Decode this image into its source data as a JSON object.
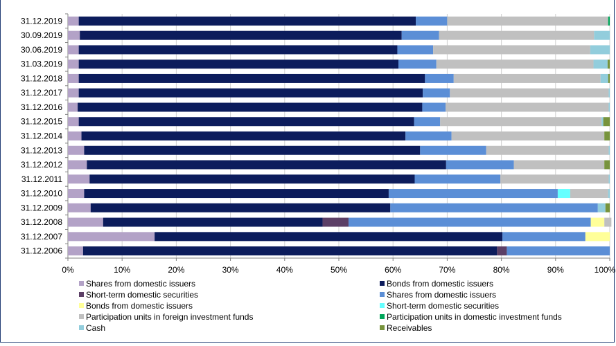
{
  "chart_data": {
    "type": "bar",
    "orientation": "horizontal",
    "stacked": true,
    "percent_stacked": true,
    "grid": true,
    "legend_position": "bottom",
    "x_range": [
      0,
      100
    ],
    "x_ticks": [
      "0%",
      "10%",
      "20%",
      "30%",
      "40%",
      "50%",
      "60%",
      "70%",
      "80%",
      "90%",
      "100%"
    ],
    "categories": [
      "31.12.2019",
      "30.09.2019",
      "30.06.2019",
      "31.03.2019",
      "31.12.2018",
      "31.12.2017",
      "31.12.2016",
      "31.12.2015",
      "31.12.2014",
      "31.12.2013",
      "31.12.2012",
      "31.12.2011",
      "31.12.2010",
      "31.12.2009",
      "31.12.2008",
      "31.12.2007",
      "31.12.2006"
    ],
    "series": [
      {
        "name": "Shares from domestic issuers",
        "color": "#b3a2c7",
        "values": [
          2,
          2.2,
          2,
          2,
          2,
          2,
          1.8,
          2,
          2.5,
          3,
          3.5,
          4,
          3,
          4.2,
          6.5,
          16,
          2.8
        ]
      },
      {
        "name": "Bonds from domestic issuers",
        "color": "#0c1c5c",
        "values": [
          62.2,
          59.4,
          58.8,
          59,
          63.9,
          63.5,
          63.6,
          61.9,
          59.8,
          62,
          66.3,
          60,
          56.2,
          55.3,
          40.5,
          64.2,
          76.4
        ]
      },
      {
        "name": "Short-term domestic securities",
        "color": "#5c3f66",
        "values": [
          0,
          0,
          0,
          0,
          0,
          0,
          0,
          0,
          0,
          0,
          0,
          0,
          0,
          0,
          4.8,
          0,
          1.8
        ]
      },
      {
        "name": "Shares from domestic issuers",
        "color": "#5b8ed6",
        "values": [
          5.8,
          6.9,
          6.6,
          7,
          5.3,
          5,
          4.3,
          4.8,
          8.5,
          12.2,
          12.5,
          15.8,
          31.2,
          38.3,
          44.7,
          15.3,
          19
        ]
      },
      {
        "name": "Bonds from domestic issuers",
        "color": "#ffff99",
        "values": [
          0,
          0,
          0,
          0,
          0,
          0,
          0,
          0,
          0,
          0,
          0,
          0,
          0,
          0,
          2.5,
          4.5,
          0
        ]
      },
      {
        "name": "Short-term domestic securities",
        "color": "#66ffff",
        "values": [
          0,
          0,
          0,
          0,
          0,
          0,
          0,
          0,
          0,
          0,
          0,
          0,
          2.3,
          0,
          0,
          0,
          0
        ]
      },
      {
        "name": "Participation units in foreign investment funds",
        "color": "#c0c0c0",
        "values": [
          29.7,
          28.6,
          29,
          29,
          27.1,
          29.3,
          30.1,
          29.8,
          28.2,
          22.6,
          16.7,
          20,
          7,
          0,
          1.3,
          0,
          0
        ]
      },
      {
        "name": "Participation units in domestic investment funds",
        "color": "#00a65a",
        "values": [
          0.3,
          0,
          0,
          0,
          0,
          0,
          0,
          0,
          0,
          0,
          0,
          0,
          0,
          0,
          0,
          0,
          0
        ]
      },
      {
        "name": "Cash",
        "color": "#92cddc",
        "values": [
          0,
          2.9,
          3.6,
          2.6,
          1.4,
          0.2,
          0.2,
          0.3,
          0,
          0.2,
          0,
          0.2,
          0.3,
          1.4,
          0,
          0,
          0
        ]
      },
      {
        "name": "Receivables",
        "color": "#77933c",
        "values": [
          0,
          0,
          0,
          0.4,
          0.3,
          0,
          0,
          1.2,
          1,
          0,
          1,
          0,
          0,
          0.8,
          0,
          0,
          0
        ]
      }
    ]
  },
  "frame_colors": {
    "border": "#1f3b73",
    "grid": "#d0d0d0",
    "axis": "#808080"
  }
}
